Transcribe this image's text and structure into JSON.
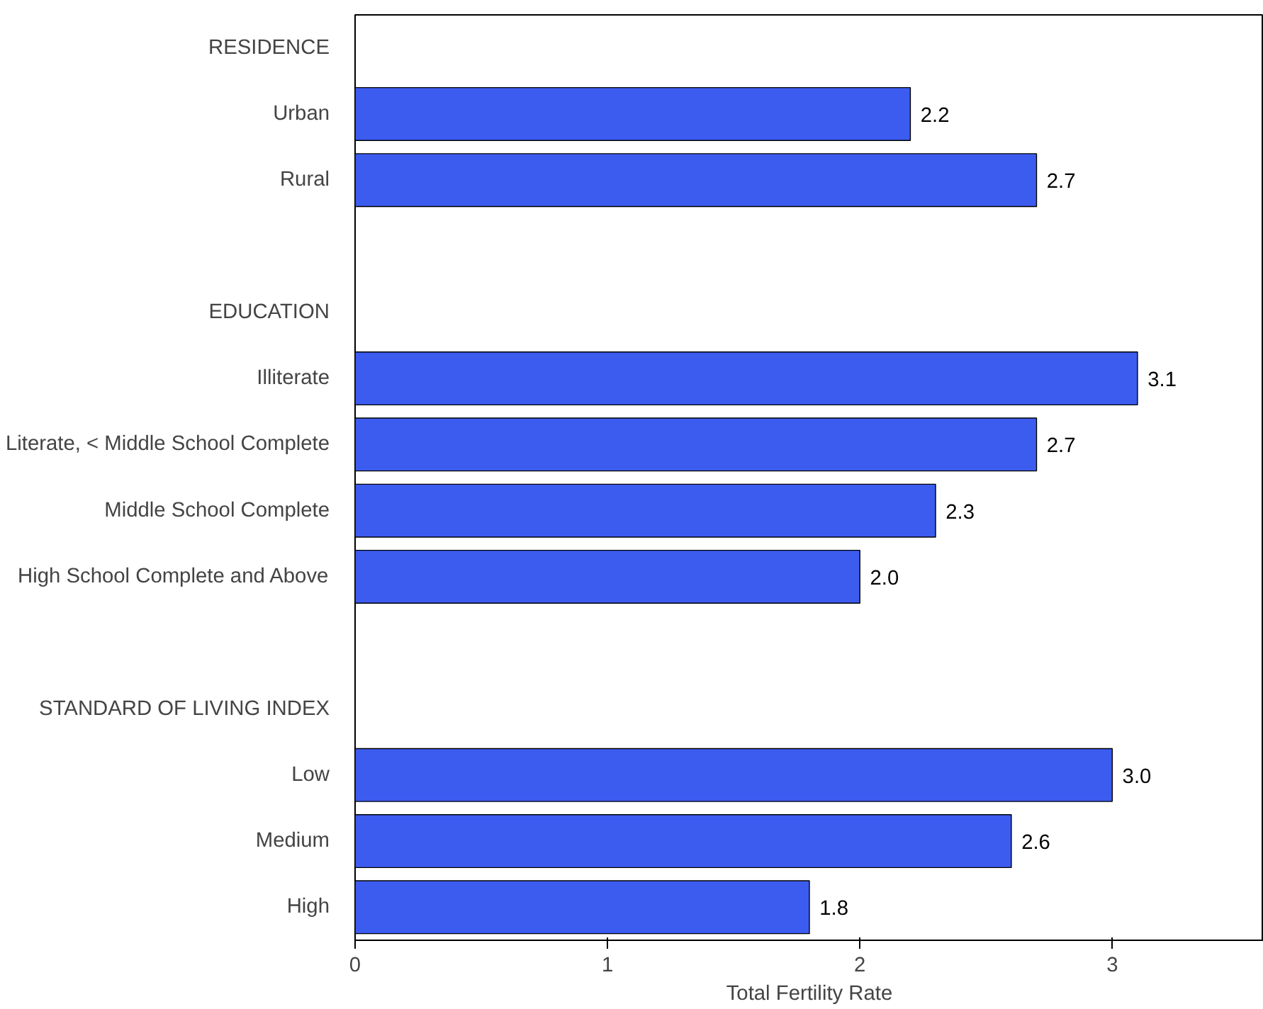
{
  "chart_data": {
    "type": "bar",
    "orientation": "horizontal",
    "xlabel": "Total Fertility Rate",
    "categories": [
      "RESIDENCE",
      "Urban",
      "Rural",
      null,
      "EDUCATION",
      "Illiterate",
      "Literate, < Middle School Complete",
      "Middle School Complete",
      "High School Complete and Above",
      null,
      "STANDARD OF LIVING INDEX",
      "Low",
      "Medium",
      "High"
    ],
    "values": [
      null,
      2.2,
      2.7,
      null,
      null,
      3.1,
      2.7,
      2.3,
      2.0,
      null,
      null,
      3.0,
      2.6,
      1.8
    ],
    "value_labels": [
      null,
      "2.2",
      "2.7",
      null,
      null,
      "3.1",
      "2.7",
      "2.3",
      "2.0",
      null,
      null,
      "3.0",
      "2.6",
      "1.8"
    ],
    "color": "#3c5cf0",
    "xlim": [
      0,
      3.6
    ],
    "xticks": [
      0,
      1,
      2,
      3
    ],
    "grid": false
  }
}
